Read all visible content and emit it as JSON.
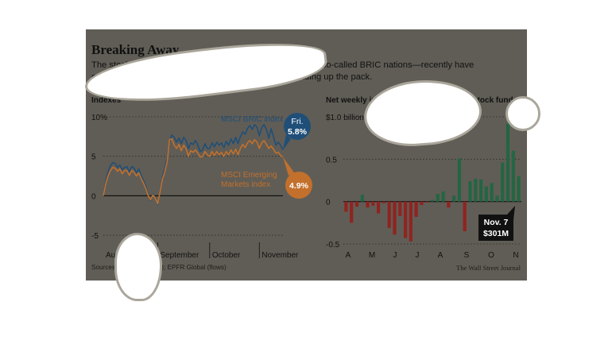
{
  "header": {
    "title": "Breaking Away",
    "subtitle": "The stock markets of Brazil, Russia, India and China—the so-called BRIC nations—recently have outperformed other emerging markets, with China heading up the pack."
  },
  "footer": {
    "source": "Sources: MSCI (indexes); EPFR Global (flows)",
    "credit": "The Wall Street Journal"
  },
  "colors": {
    "background": "#605d56",
    "bric": "#1f4f78",
    "emerging": "#c3702c",
    "inflow_positive": "#236643",
    "inflow_negative": "#8f2420",
    "callout_dark": "#111111"
  },
  "chart_data": [
    {
      "type": "line",
      "title": "Indexes",
      "ylim": [
        -6,
        10
      ],
      "yticks": [
        -5,
        0,
        5,
        10
      ],
      "ytick_labels": [
        "-5",
        "0",
        "5",
        "10%"
      ],
      "xtick_labels": [
        "August",
        "September",
        "October",
        "November"
      ],
      "x": [
        0,
        1,
        2,
        3,
        4,
        5,
        6,
        7,
        8,
        9,
        10,
        11,
        12,
        13,
        14,
        15,
        16,
        17,
        18,
        19,
        20,
        21,
        22,
        23,
        24,
        25,
        26,
        27,
        28,
        29,
        30,
        31,
        32,
        33,
        34,
        35,
        36,
        37,
        38,
        39,
        40,
        41,
        42,
        43,
        44,
        45,
        46,
        47,
        48,
        49,
        50,
        51,
        52,
        53,
        54,
        55,
        56,
        57,
        58,
        59,
        60,
        61,
        62,
        63,
        64,
        65,
        66,
        67,
        68,
        69,
        70,
        71,
        72,
        73,
        74,
        75,
        76
      ],
      "series": [
        {
          "name": "MSCI BRIC index",
          "values": [
            0.0,
            1.8,
            3.0,
            3.8,
            4.2,
            4.1,
            3.6,
            3.9,
            3.3,
            3.6,
            3.7,
            3.0,
            3.7,
            3.5,
            2.9,
            3.4,
            2.6,
            1.9,
            1.2,
            0.1,
            -0.6,
            0.2,
            -0.2,
            -1.1,
            0.6,
            2.4,
            3.4,
            4.8,
            6.8,
            7.7,
            7.4,
            6.8,
            7.3,
            6.6,
            7.4,
            7.0,
            6.0,
            6.7,
            6.5,
            7.0,
            6.4,
            5.6,
            5.8,
            6.6,
            6.0,
            6.0,
            6.7,
            6.2,
            6.8,
            6.4,
            6.7,
            6.1,
            6.9,
            6.4,
            7.2,
            6.6,
            7.4,
            6.6,
            7.5,
            8.1,
            7.8,
            8.5,
            8.9,
            8.4,
            9.0,
            8.7,
            7.6,
            8.6,
            9.0,
            8.4,
            7.3,
            8.5,
            7.5,
            6.4,
            6.8,
            6.4,
            5.8
          ]
        },
        {
          "name": "MSCI Emerging Markets index",
          "values": [
            0.0,
            1.5,
            2.5,
            3.2,
            3.6,
            3.5,
            3.1,
            3.4,
            2.8,
            3.2,
            3.2,
            2.6,
            3.2,
            3.0,
            2.5,
            2.9,
            2.2,
            1.6,
            0.9,
            0.0,
            -0.5,
            0.1,
            -0.3,
            -1.0,
            0.5,
            2.1,
            3.0,
            4.3,
            7.1,
            7.2,
            6.4,
            6.0,
            6.5,
            5.7,
            6.4,
            6.0,
            5.0,
            5.7,
            5.5,
            5.8,
            5.4,
            4.9,
            5.0,
            5.6,
            5.2,
            5.0,
            5.6,
            5.1,
            5.6,
            5.2,
            5.5,
            5.0,
            5.6,
            5.2,
            5.8,
            5.3,
            5.9,
            5.2,
            6.0,
            6.5,
            6.1,
            6.7,
            7.0,
            6.6,
            7.1,
            6.8,
            6.0,
            6.7,
            7.0,
            6.5,
            6.0,
            6.3,
            5.9,
            5.4,
            5.5,
            5.1,
            4.9
          ]
        }
      ],
      "annotations": [
        {
          "text": "MSCI BRIC index",
          "color": "#1f4f78"
        },
        {
          "text": "MSCI Emerging Markets index",
          "color": "#c3702c"
        },
        {
          "text": "Fri.",
          "value": "5.8%"
        },
        {
          "text": "4.9%"
        }
      ],
      "grid": true
    },
    {
      "type": "bar",
      "title": "Net weekly inflows into China-focused stock funds",
      "ylim": [
        -0.5,
        1.0
      ],
      "yticks": [
        -0.5,
        0,
        0.5,
        1.0
      ],
      "ytick_labels": [
        "-0.5",
        "0",
        "0.5",
        "$1.0 billion"
      ],
      "xtick_labels": [
        "A",
        "M",
        "J",
        "J",
        "A",
        "S",
        "O",
        "N"
      ],
      "values": [
        -0.12,
        -0.25,
        -0.06,
        0.08,
        -0.07,
        -0.05,
        -0.14,
        -0.02,
        -0.31,
        -0.39,
        -0.17,
        -0.43,
        -0.47,
        -0.18,
        -0.04,
        -0.01,
        0.02,
        0.09,
        0.12,
        -0.07,
        0.07,
        0.51,
        -0.35,
        0.24,
        0.27,
        0.26,
        0.18,
        0.22,
        0.07,
        0.46,
        0.92,
        0.6,
        0.3
      ],
      "callout": {
        "label": "Nov. 7",
        "value": "$301M"
      },
      "grid": true
    }
  ]
}
